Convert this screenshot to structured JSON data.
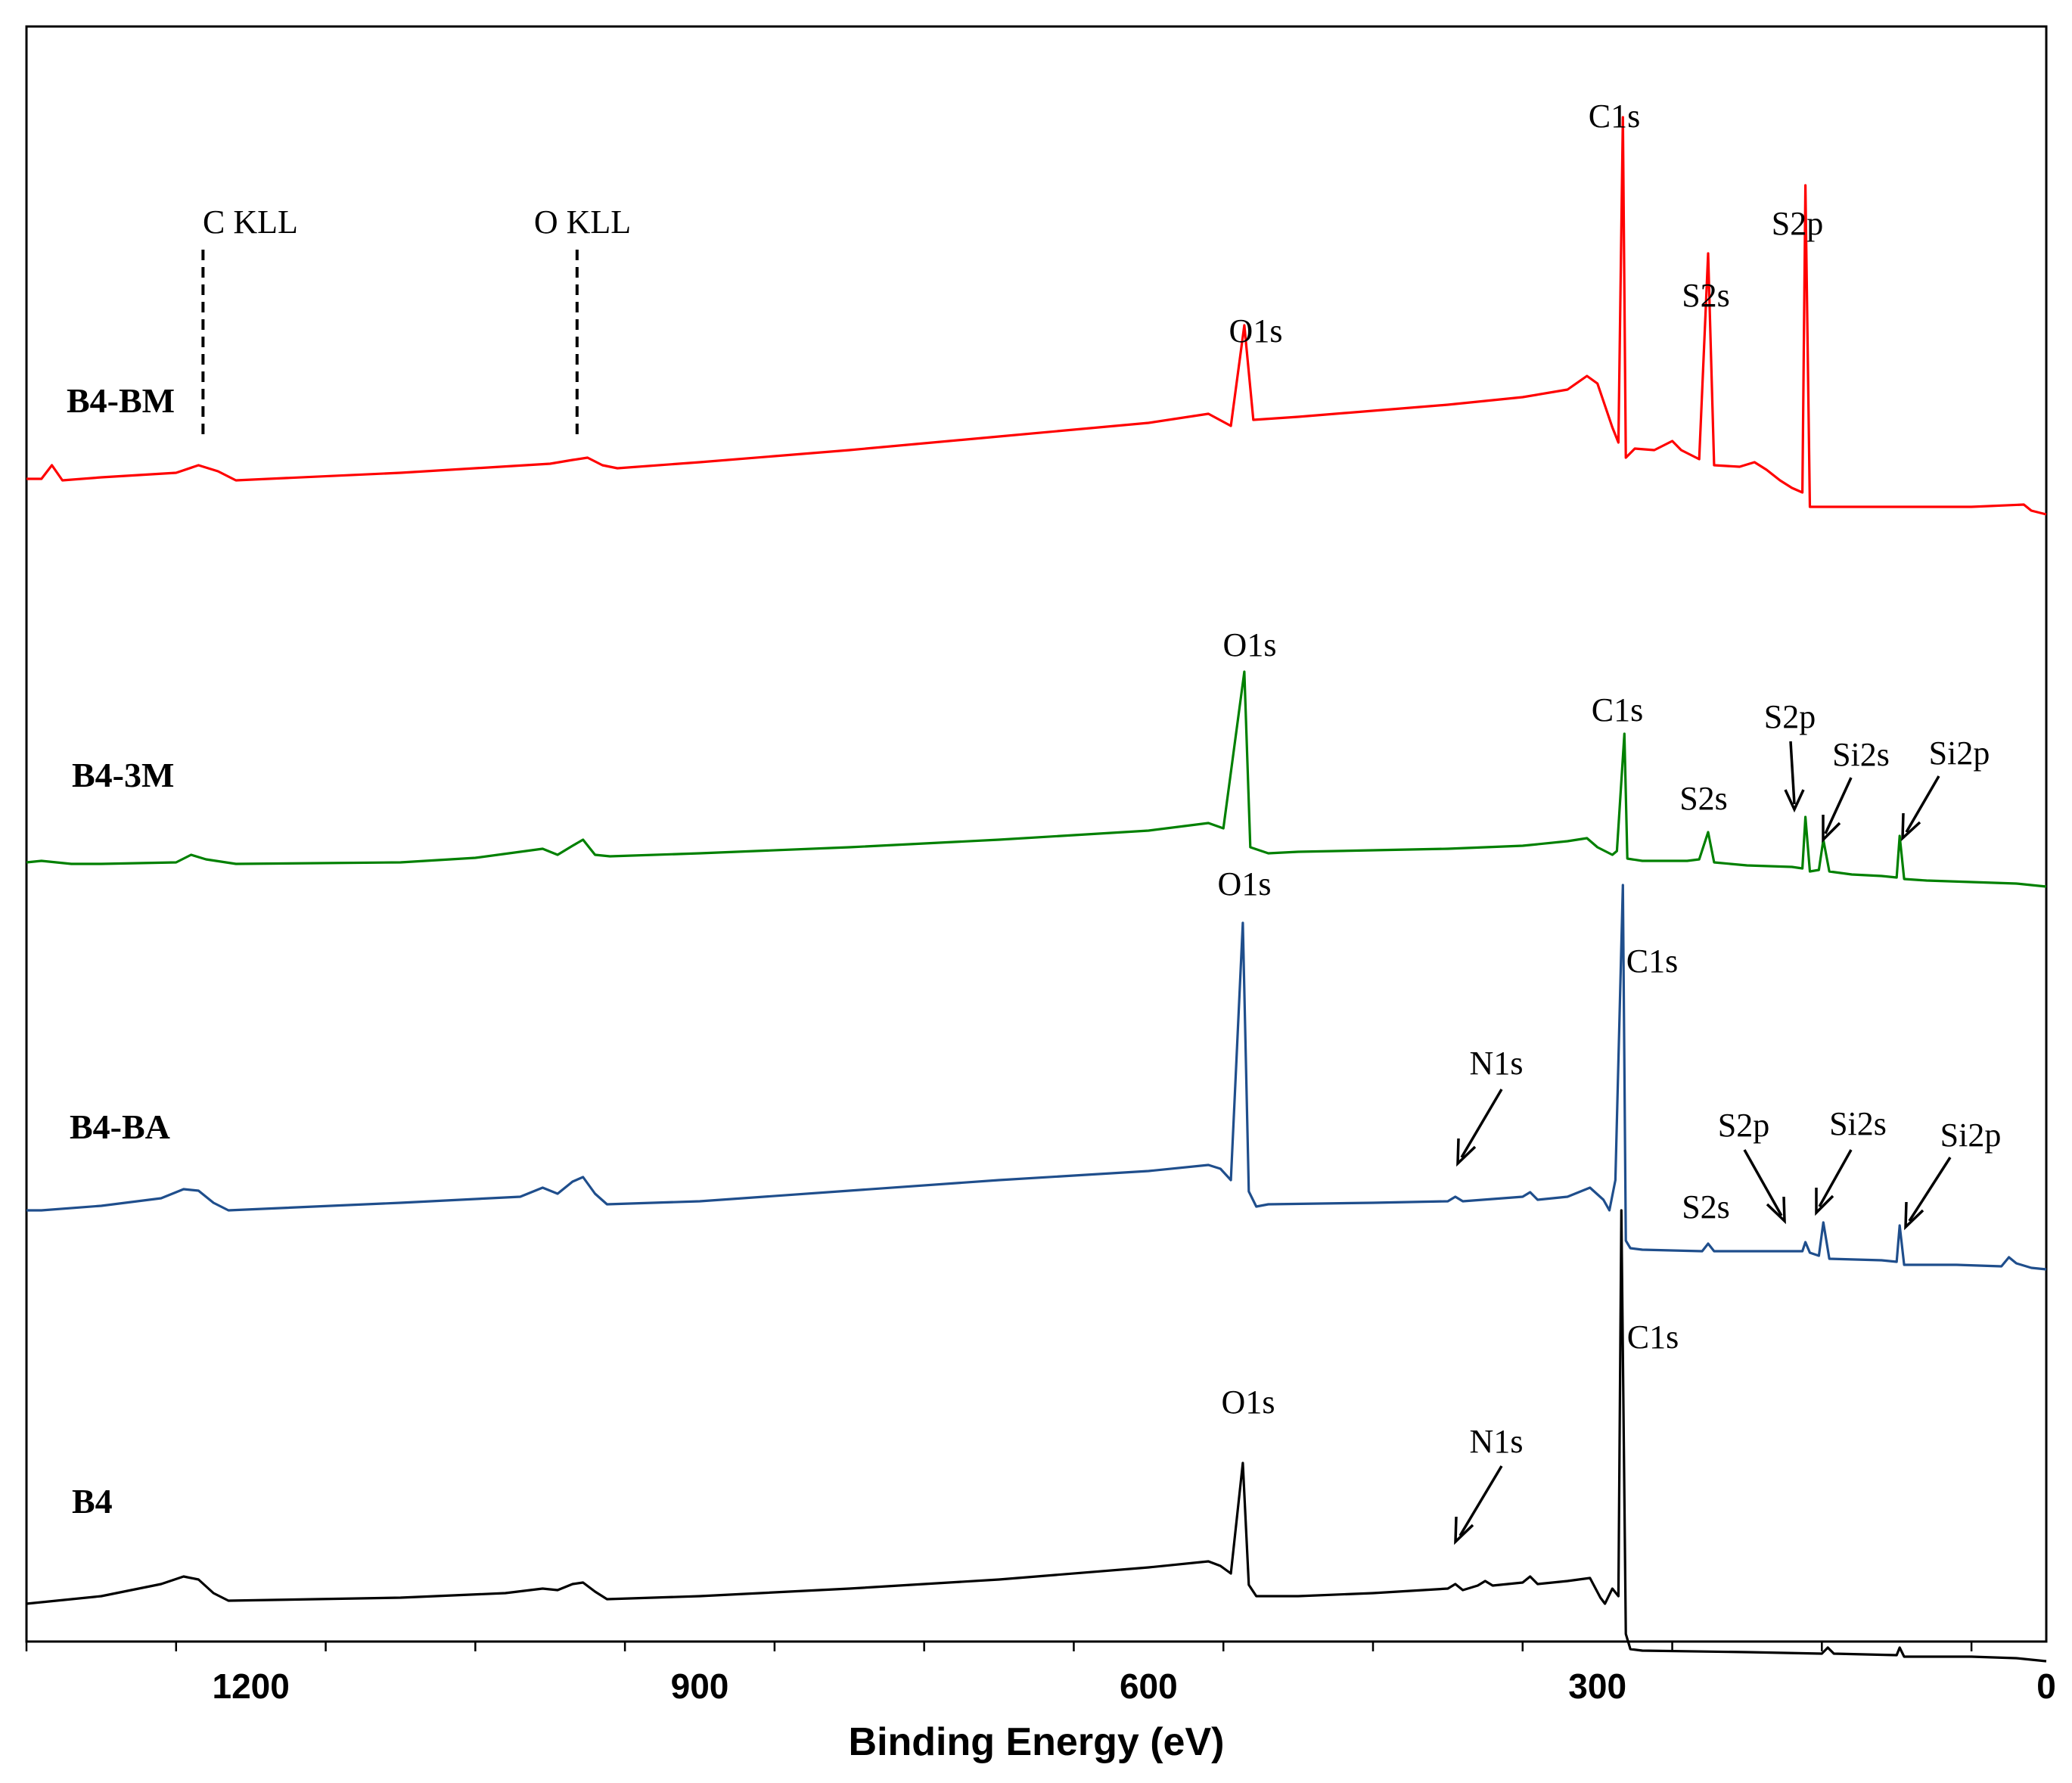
{
  "chart_data": {
    "type": "line",
    "title": "",
    "xlabel": "Binding Energy (eV)",
    "ylabel": "",
    "xlim": [
      1350,
      0
    ],
    "x_reversed": true,
    "x_ticks": [
      1200,
      900,
      600,
      300,
      0
    ],
    "x_tick_labels": [
      "1200",
      "900",
      "600",
      "300",
      "0"
    ],
    "x_minor_step": 100,
    "series": [
      {
        "name": "B4-BM",
        "color": "#ff0000",
        "points": [
          [
            1350,
            -8
          ],
          [
            1340,
            -8
          ],
          [
            1333,
            10
          ],
          [
            1326,
            -10
          ],
          [
            1300,
            -6
          ],
          [
            1250,
            0
          ],
          [
            1235,
            10
          ],
          [
            1222,
            2
          ],
          [
            1210,
            -10
          ],
          [
            1100,
            0
          ],
          [
            1000,
            12
          ],
          [
            985,
            17
          ],
          [
            975,
            20
          ],
          [
            965,
            10
          ],
          [
            955,
            6
          ],
          [
            900,
            14
          ],
          [
            800,
            30
          ],
          [
            700,
            48
          ],
          [
            600,
            66
          ],
          [
            560,
            78
          ],
          [
            545,
            62
          ],
          [
            536,
            195
          ],
          [
            530,
            70
          ],
          [
            500,
            74
          ],
          [
            450,
            82
          ],
          [
            400,
            90
          ],
          [
            350,
            100
          ],
          [
            320,
            110
          ],
          [
            307,
            128
          ],
          [
            300,
            118
          ],
          [
            290,
            60
          ],
          [
            286,
            40
          ],
          [
            283,
            470
          ],
          [
            281,
            20
          ],
          [
            275,
            32
          ],
          [
            262,
            30
          ],
          [
            250,
            42
          ],
          [
            244,
            30
          ],
          [
            232,
            18
          ],
          [
            226,
            290
          ],
          [
            222,
            10
          ],
          [
            205,
            8
          ],
          [
            195,
            14
          ],
          [
            187,
            4
          ],
          [
            178,
            -10
          ],
          [
            170,
            -20
          ],
          [
            163,
            -26
          ],
          [
            161,
            380
          ],
          [
            158,
            -45
          ],
          [
            150,
            -45
          ],
          [
            100,
            -45
          ],
          [
            50,
            -45
          ],
          [
            15,
            -42
          ],
          [
            10,
            -50
          ],
          [
            0,
            -55
          ]
        ],
        "peaks": [
          {
            "label": "C1s",
            "x": 283
          },
          {
            "label": "S2s",
            "x": 226
          },
          {
            "label": "S2p",
            "x": 161
          },
          {
            "label": "O1s",
            "x": 536
          }
        ]
      },
      {
        "name": "B4-3M",
        "color": "#008000",
        "points": [
          [
            1350,
            0
          ],
          [
            1340,
            2
          ],
          [
            1320,
            -2
          ],
          [
            1300,
            -2
          ],
          [
            1250,
            0
          ],
          [
            1240,
            10
          ],
          [
            1230,
            4
          ],
          [
            1210,
            -2
          ],
          [
            1100,
            0
          ],
          [
            1050,
            6
          ],
          [
            1005,
            18
          ],
          [
            995,
            10
          ],
          [
            985,
            22
          ],
          [
            978,
            30
          ],
          [
            970,
            10
          ],
          [
            960,
            8
          ],
          [
            900,
            12
          ],
          [
            800,
            20
          ],
          [
            700,
            30
          ],
          [
            600,
            42
          ],
          [
            560,
            52
          ],
          [
            550,
            45
          ],
          [
            536,
            252
          ],
          [
            532,
            20
          ],
          [
            520,
            12
          ],
          [
            500,
            14
          ],
          [
            400,
            18
          ],
          [
            350,
            22
          ],
          [
            320,
            28
          ],
          [
            307,
            32
          ],
          [
            300,
            20
          ],
          [
            290,
            10
          ],
          [
            287,
            15
          ],
          [
            282,
            170
          ],
          [
            280,
            5
          ],
          [
            270,
            2
          ],
          [
            240,
            2
          ],
          [
            232,
            4
          ],
          [
            226,
            40
          ],
          [
            222,
            0
          ],
          [
            200,
            -4
          ],
          [
            170,
            -6
          ],
          [
            163,
            -8
          ],
          [
            161,
            60
          ],
          [
            158,
            -12
          ],
          [
            152,
            -10
          ],
          [
            149,
            30
          ],
          [
            145,
            -12
          ],
          [
            130,
            -16
          ],
          [
            110,
            -18
          ],
          [
            100,
            -20
          ],
          [
            98,
            35
          ],
          [
            95,
            -22
          ],
          [
            80,
            -24
          ],
          [
            50,
            -26
          ],
          [
            20,
            -28
          ],
          [
            10,
            -30
          ],
          [
            0,
            -32
          ]
        ],
        "peaks": [
          {
            "label": "O1s",
            "x": 536
          },
          {
            "label": "C1s",
            "x": 282
          },
          {
            "label": "S2s",
            "x": 226
          },
          {
            "label": "S2p",
            "x": 161
          },
          {
            "label": "Si2s",
            "x": 150
          },
          {
            "label": "Si2p",
            "x": 100
          }
        ]
      },
      {
        "name": "B4-BA",
        "color": "#1f4e8c",
        "points": [
          [
            1350,
            0
          ],
          [
            1340,
            0
          ],
          [
            1300,
            6
          ],
          [
            1260,
            16
          ],
          [
            1245,
            28
          ],
          [
            1235,
            26
          ],
          [
            1225,
            10
          ],
          [
            1215,
            0
          ],
          [
            1100,
            10
          ],
          [
            1020,
            18
          ],
          [
            1005,
            30
          ],
          [
            995,
            22
          ],
          [
            985,
            38
          ],
          [
            978,
            44
          ],
          [
            970,
            22
          ],
          [
            962,
            8
          ],
          [
            900,
            12
          ],
          [
            800,
            26
          ],
          [
            700,
            40
          ],
          [
            600,
            52
          ],
          [
            560,
            60
          ],
          [
            552,
            55
          ],
          [
            545,
            40
          ],
          [
            537,
            380
          ],
          [
            533,
            25
          ],
          [
            528,
            5
          ],
          [
            520,
            8
          ],
          [
            450,
            10
          ],
          [
            400,
            12
          ],
          [
            395,
            18
          ],
          [
            390,
            12
          ],
          [
            350,
            18
          ],
          [
            345,
            24
          ],
          [
            340,
            14
          ],
          [
            320,
            18
          ],
          [
            305,
            30
          ],
          [
            296,
            14
          ],
          [
            292,
            0
          ],
          [
            288,
            40
          ],
          [
            283,
            430
          ],
          [
            281,
            -40
          ],
          [
            278,
            -50
          ],
          [
            270,
            -52
          ],
          [
            230,
            -54
          ],
          [
            226,
            -44
          ],
          [
            222,
            -54
          ],
          [
            200,
            -54
          ],
          [
            163,
            -54
          ],
          [
            161,
            -42
          ],
          [
            158,
            -56
          ],
          [
            152,
            -60
          ],
          [
            149,
            -16
          ],
          [
            145,
            -64
          ],
          [
            110,
            -66
          ],
          [
            100,
            -68
          ],
          [
            98,
            -20
          ],
          [
            95,
            -72
          ],
          [
            60,
            -72
          ],
          [
            30,
            -74
          ],
          [
            25,
            -62
          ],
          [
            20,
            -70
          ],
          [
            10,
            -76
          ],
          [
            0,
            -78
          ]
        ],
        "peaks": [
          {
            "label": "O1s",
            "x": 537
          },
          {
            "label": "C1s",
            "x": 283
          },
          {
            "label": "N1s",
            "x": 399
          },
          {
            "label": "S2s",
            "x": 226
          },
          {
            "label": "S2p",
            "x": 161
          },
          {
            "label": "Si2s",
            "x": 149
          },
          {
            "label": "Si2p",
            "x": 98
          }
        ]
      },
      {
        "name": "B4",
        "color": "#000000",
        "points": [
          [
            1350,
            0
          ],
          [
            1300,
            10
          ],
          [
            1260,
            26
          ],
          [
            1245,
            36
          ],
          [
            1235,
            32
          ],
          [
            1225,
            14
          ],
          [
            1215,
            4
          ],
          [
            1100,
            8
          ],
          [
            1030,
            14
          ],
          [
            1005,
            20
          ],
          [
            995,
            18
          ],
          [
            985,
            26
          ],
          [
            978,
            28
          ],
          [
            970,
            16
          ],
          [
            962,
            6
          ],
          [
            900,
            10
          ],
          [
            800,
            20
          ],
          [
            700,
            32
          ],
          [
            600,
            48
          ],
          [
            560,
            56
          ],
          [
            552,
            50
          ],
          [
            545,
            40
          ],
          [
            537,
            186
          ],
          [
            533,
            25
          ],
          [
            528,
            10
          ],
          [
            500,
            10
          ],
          [
            450,
            14
          ],
          [
            400,
            20
          ],
          [
            395,
            26
          ],
          [
            390,
            18
          ],
          [
            380,
            24
          ],
          [
            375,
            30
          ],
          [
            370,
            24
          ],
          [
            350,
            28
          ],
          [
            345,
            36
          ],
          [
            340,
            26
          ],
          [
            320,
            30
          ],
          [
            305,
            34
          ],
          [
            298,
            8
          ],
          [
            295,
            0
          ],
          [
            290,
            20
          ],
          [
            286,
            10
          ],
          [
            284,
            520
          ],
          [
            281,
            -40
          ],
          [
            278,
            -60
          ],
          [
            270,
            -62
          ],
          [
            200,
            -64
          ],
          [
            150,
            -66
          ],
          [
            146,
            -58
          ],
          [
            142,
            -66
          ],
          [
            100,
            -68
          ],
          [
            98,
            -58
          ],
          [
            95,
            -70
          ],
          [
            50,
            -70
          ],
          [
            20,
            -72
          ],
          [
            10,
            -74
          ],
          [
            0,
            -76
          ]
        ],
        "peaks": [
          {
            "label": "O1s",
            "x": 537
          },
          {
            "label": "C1s",
            "x": 284
          },
          {
            "label": "N1s",
            "x": 399
          }
        ]
      }
    ],
    "reference_lines": [
      {
        "label": "C KLL",
        "x": 1232
      },
      {
        "label": "O KLL",
        "x": 982
      }
    ]
  }
}
